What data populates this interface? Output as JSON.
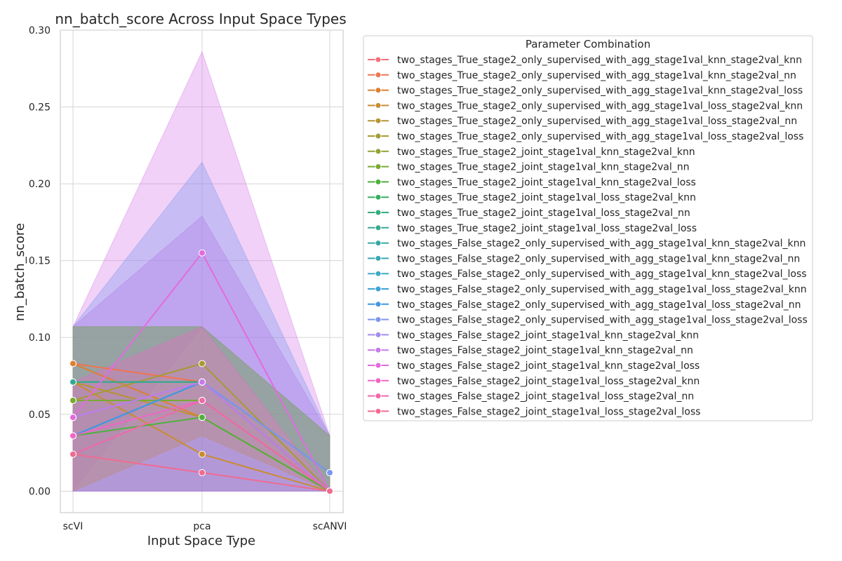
{
  "chart_data": {
    "type": "line",
    "title": "nn_batch_score Across Input Space Types",
    "xlabel": "Input Space Type",
    "ylabel": "nn_batch_score",
    "categories": [
      "scVI",
      "pca",
      "scANVI"
    ],
    "ylim": [
      -0.014,
      0.3
    ],
    "yticks": [
      "0.00",
      "0.05",
      "0.10",
      "0.15",
      "0.20",
      "0.25",
      "0.30"
    ],
    "grid": true,
    "legend_title": "Parameter Combination",
    "legend_position": "outside-right",
    "series": [
      {
        "name": "two_stages_True_stage2_only_supervised_with_agg_stage1val_knn_stage2val_knn",
        "color": "#f0717a",
        "values": [
          0.083,
          0.071,
          0.0
        ]
      },
      {
        "name": "two_stages_True_stage2_only_supervised_with_agg_stage1val_knn_stage2val_nn",
        "color": "#ec7652",
        "values": [
          0.083,
          0.071,
          0.0
        ]
      },
      {
        "name": "two_stages_True_stage2_only_supervised_with_agg_stage1val_knn_stage2val_loss",
        "color": "#dd8030",
        "values": [
          0.083,
          0.048,
          0.0
        ]
      },
      {
        "name": "two_stages_True_stage2_only_supervised_with_agg_stage1val_loss_stage2val_knn",
        "color": "#c98c30",
        "values": [
          0.071,
          0.024,
          0.0
        ]
      },
      {
        "name": "two_stages_True_stage2_only_supervised_with_agg_stage1val_loss_stage2val_nn",
        "color": "#b69432",
        "values": [
          0.071,
          0.048,
          0.0
        ]
      },
      {
        "name": "two_stages_True_stage2_only_supervised_with_agg_stage1val_loss_stage2val_loss",
        "color": "#a59b32",
        "values": [
          0.059,
          0.083,
          0.0
        ]
      },
      {
        "name": "two_stages_True_stage2_joint_stage1val_knn_stage2val_knn",
        "color": "#94a232",
        "values": [
          0.059,
          0.059,
          0.0
        ]
      },
      {
        "name": "two_stages_True_stage2_joint_stage1val_knn_stage2val_nn",
        "color": "#78aa33",
        "values": [
          0.059,
          0.059,
          0.0
        ]
      },
      {
        "name": "two_stages_True_stage2_joint_stage1val_knn_stage2val_loss",
        "color": "#4eb13d",
        "values": [
          0.036,
          0.048,
          0.0
        ]
      },
      {
        "name": "two_stages_True_stage2_joint_stage1val_loss_stage2val_knn",
        "color": "#34af5e",
        "values": [
          0.071,
          0.071,
          0.0
        ]
      },
      {
        "name": "two_stages_True_stage2_joint_stage1val_loss_stage2val_nn",
        "color": "#35ac7f",
        "values": [
          0.071,
          0.071,
          0.0
        ]
      },
      {
        "name": "two_stages_True_stage2_joint_stage1val_loss_stage2val_loss",
        "color": "#37a993",
        "values": [
          0.071,
          0.071,
          0.0
        ]
      },
      {
        "name": "two_stages_False_stage2_only_supervised_with_agg_stage1val_knn_stage2val_knn",
        "color": "#37a8a3",
        "values": [
          0.048,
          0.071,
          0.0
        ]
      },
      {
        "name": "two_stages_False_stage2_only_supervised_with_agg_stage1val_knn_stage2val_nn",
        "color": "#38a9b4",
        "values": [
          0.048,
          0.071,
          0.0
        ]
      },
      {
        "name": "two_stages_False_stage2_only_supervised_with_agg_stage1val_knn_stage2val_loss",
        "color": "#3aaac6",
        "values": [
          0.048,
          0.071,
          0.0
        ]
      },
      {
        "name": "two_stages_False_stage2_only_supervised_with_agg_stage1val_loss_stage2val_knn",
        "color": "#3ba3d6",
        "values": [
          0.036,
          0.071,
          0.012
        ]
      },
      {
        "name": "two_stages_False_stage2_only_supervised_with_agg_stage1val_loss_stage2val_nn",
        "color": "#4196e3",
        "values": [
          0.036,
          0.071,
          0.012
        ]
      },
      {
        "name": "two_stages_False_stage2_only_supervised_with_agg_stage1val_loss_stage2val_loss",
        "color": "#7b96ee",
        "values": [
          0.048,
          0.071,
          0.012
        ]
      },
      {
        "name": "two_stages_False_stage2_joint_stage1val_knn_stage2val_knn",
        "color": "#a38cf0",
        "values": [
          0.048,
          0.071,
          0.0
        ]
      },
      {
        "name": "two_stages_False_stage2_joint_stage1val_knn_stage2val_nn",
        "color": "#c77ae9",
        "values": [
          0.048,
          0.071,
          0.0
        ]
      },
      {
        "name": "two_stages_False_stage2_joint_stage1val_knn_stage2val_loss",
        "color": "#e36ae0",
        "values": [
          0.048,
          0.155,
          0.0
        ]
      },
      {
        "name": "two_stages_False_stage2_joint_stage1val_loss_stage2val_knn",
        "color": "#ef66c5",
        "values": [
          0.036,
          0.059,
          0.0
        ]
      },
      {
        "name": "two_stages_False_stage2_joint_stage1val_loss_stage2val_nn",
        "color": "#f068aa",
        "values": [
          0.024,
          0.059,
          0.0
        ]
      },
      {
        "name": "two_stages_False_stage2_joint_stage1val_loss_stage2val_loss",
        "color": "#f06b90",
        "values": [
          0.024,
          0.012,
          0.0
        ]
      }
    ],
    "bands": [
      {
        "series": "two_stages_False_stage2_joint_stage1val_knn_stage2val_loss",
        "color": "#d77be8",
        "lower": [
          0.0,
          0.107,
          0.0
        ],
        "upper": [
          0.107,
          0.286,
          0.036
        ]
      },
      {
        "series": "two_stages_False_stage2_only_supervised_with_agg_stage1val_loss_stage2val_loss",
        "color": "#7b96ee",
        "lower": [
          0.0,
          0.0,
          0.0
        ],
        "upper": [
          0.107,
          0.214,
          0.036
        ]
      },
      {
        "series": "two_stages_False_stage2_joint_stage1val_knn_stage2val_nn",
        "color": "#b07ce6",
        "lower": [
          0.0,
          0.0,
          0.0
        ],
        "upper": [
          0.107,
          0.179,
          0.036
        ]
      },
      {
        "series": "two_stages_False_stage2_only_supervised_with_agg_stage1val_knn_stage2val_loss",
        "color": "#3aaac6",
        "lower": [
          0.0,
          0.0,
          0.0
        ],
        "upper": [
          0.107,
          0.107,
          0.036
        ]
      },
      {
        "series": "two_stages_True_stage2_only_supervised_with_agg_stage1val_loss_stage2val_loss",
        "color": "#a59b32",
        "lower": [
          0.0,
          0.036,
          0.0
        ],
        "upper": [
          0.107,
          0.107,
          0.036
        ]
      },
      {
        "series": "two_stages_False_stage2_joint_stage1val_loss_stage2val_nn",
        "color": "#ef66c5",
        "lower": [
          0.0,
          0.0,
          0.0
        ],
        "upper": [
          0.071,
          0.107,
          0.0
        ]
      }
    ]
  }
}
